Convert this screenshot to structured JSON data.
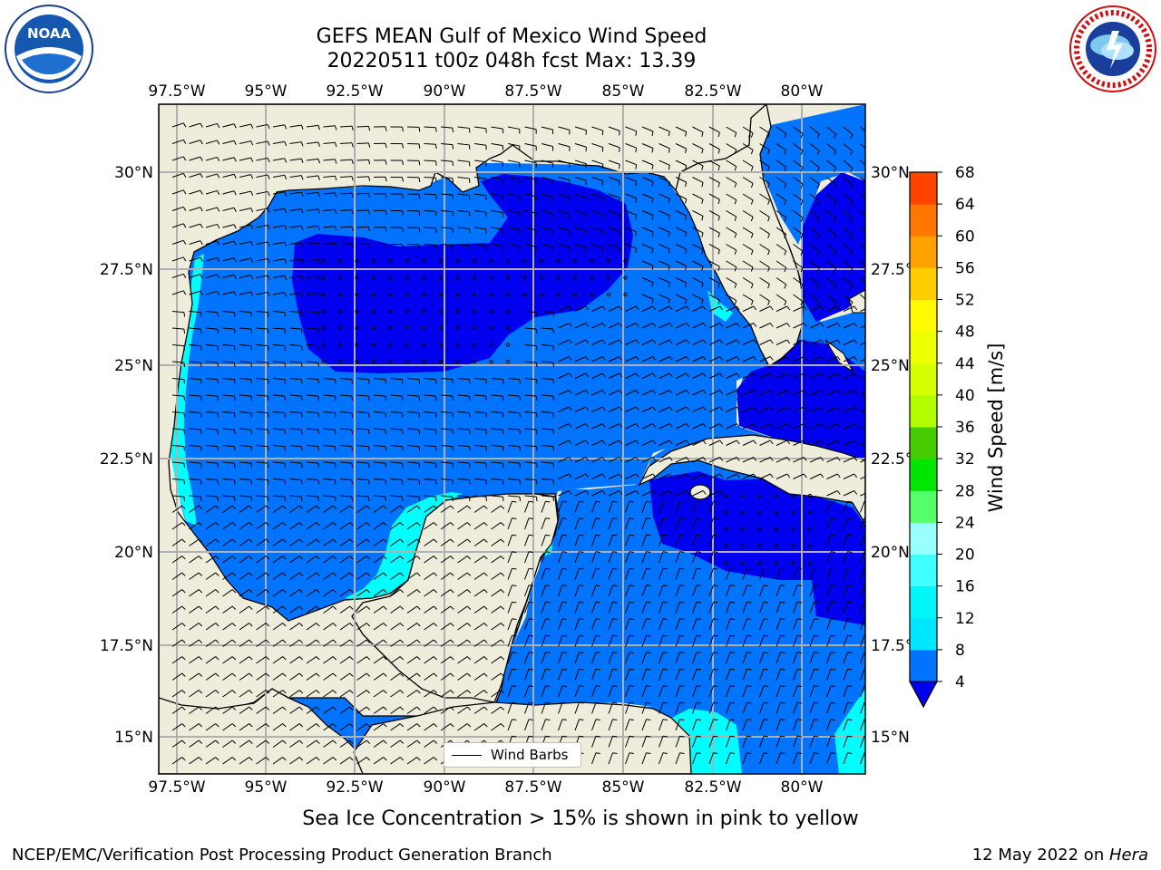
{
  "title_line1": "GEFS MEAN Gulf of Mexico Wind Speed",
  "title_line2": "20220511 t00z 048h fcst   Max: 13.39",
  "logos": {
    "left": "NOAA",
    "right": "NATIONAL WEATHER SERVICE"
  },
  "lon_ticks": [
    "97.5°W",
    "95°W",
    "92.5°W",
    "90°W",
    "87.5°W",
    "85°W",
    "82.5°W",
    "80°W"
  ],
  "lat_ticks": [
    "30°N",
    "27.5°N",
    "25°N",
    "22.5°N",
    "20°N",
    "17.5°N",
    "15°N"
  ],
  "colorbar": {
    "label": "Wind Speed [m/s]",
    "levels": [
      4,
      8,
      12,
      16,
      20,
      24,
      28,
      32,
      36,
      40,
      44,
      48,
      52,
      56,
      60,
      64,
      68
    ],
    "tick_labels": [
      "68",
      "64",
      "60",
      "56",
      "52",
      "48",
      "44",
      "40",
      "36",
      "32",
      "28",
      "24",
      "20",
      "16",
      "12",
      "8",
      "4"
    ],
    "colors": [
      "#0073ff",
      "#00e6ff",
      "#00f7f7",
      "#42ffff",
      "#99ffff",
      "#55ff6a",
      "#00e600",
      "#44cc00",
      "#b3ff00",
      "#d5ff00",
      "#eeff00",
      "#fffa00",
      "#ffcc00",
      "#ffa200",
      "#ff7700",
      "#ff4400"
    ],
    "under_color": "#0000f0"
  },
  "colors": {
    "land": "#eeeddc",
    "ocean_fill": "#0073ff",
    "calm_fill": "#0000f0",
    "coast_fill": "#00ffff"
  },
  "legend": {
    "label": "Wind Barbs"
  },
  "caption": "Sea Ice Concentration > 15% is shown in pink to yellow",
  "footer_left": "NCEP/EMC/Verification Post Processing Product Generation Branch",
  "footer_right_prefix": "12 May 2022 on ",
  "footer_right_machine": "Hera"
}
